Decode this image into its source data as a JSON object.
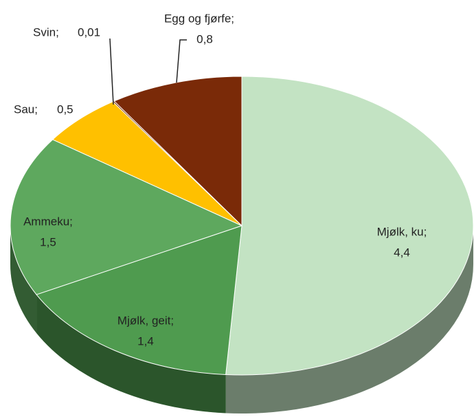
{
  "chart_data": {
    "type": "pie",
    "categories": [
      "Mjølk, ku;",
      "Mjølk, geit;",
      "Ammeku;",
      "Sau;",
      "Svin;",
      "Egg og fjørfe;"
    ],
    "values": [
      4.4,
      1.4,
      1.5,
      0.5,
      0.01,
      0.8
    ],
    "value_labels": [
      "4,4",
      "1,4",
      "1,5",
      "0,5",
      "0,01",
      "0,8"
    ],
    "colors": [
      "#c3e3c3",
      "#4f9b4f",
      "#5ea85e",
      "#ffc000",
      "#7a2a08",
      "#7a2a08"
    ]
  }
}
